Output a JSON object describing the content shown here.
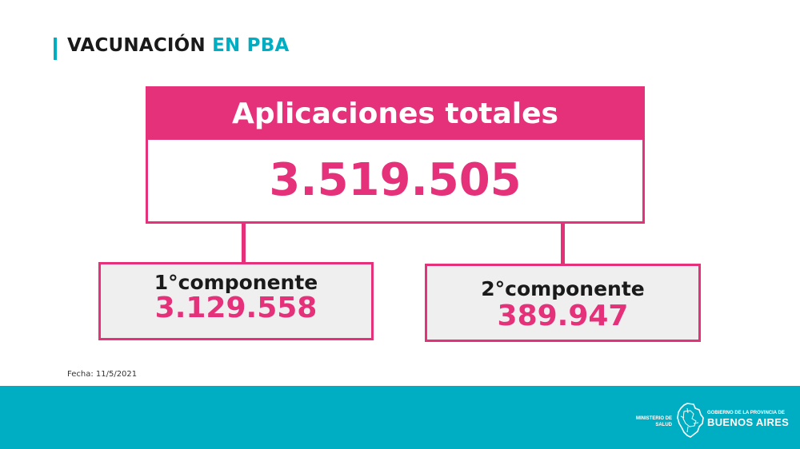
{
  "header": {
    "title_main": "VACUNACIÓN",
    "title_accent": "EN PBA"
  },
  "total": {
    "label": "Aplicaciones totales",
    "value": "3.519.505"
  },
  "components": [
    {
      "label": "1°componente",
      "value": "3.129.558"
    },
    {
      "label": "2°componente",
      "value": "389.947"
    }
  ],
  "date": "Fecha: 11/5/2021",
  "footer": {
    "ministry_line1": "MINISTERIO DE",
    "ministry_line2": "SALUD",
    "gov_line1": "GOBIERNO DE LA PROVINCIA DE",
    "gov_line2": "BUENOS AIRES",
    "map_icon": "buenos-aires-province-map-icon"
  },
  "colors": {
    "accent_pink": "#e5317a",
    "accent_teal": "#00aec3",
    "box_gray": "#efefef"
  }
}
